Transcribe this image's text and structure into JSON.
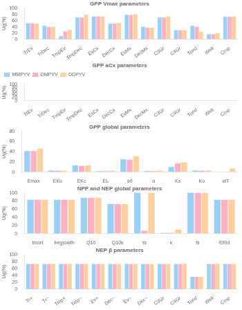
{
  "chart_data": [
    {
      "type": "bar",
      "title": "GPP Vmax parameters",
      "y_label": "Ug(%)",
      "categories": [
        "TrEv",
        "TrDec",
        "TmpEv",
        "TmpDec",
        "EvCx",
        "DecCx",
        "EvMx",
        "DecMx",
        "C3Gr",
        "C4Gr",
        "Tund",
        "Welt",
        "Crop"
      ],
      "series": [
        {
          "name": "MMPYV",
          "values": [
            51,
            43,
            10,
            70,
            73,
            50,
            78,
            40,
            70,
            29,
            43,
            16,
            72
          ]
        },
        {
          "name": "DMPYV",
          "values": [
            51,
            40,
            25,
            70,
            73,
            50,
            78,
            37,
            70,
            29,
            40,
            16,
            72
          ]
        },
        {
          "name": "DDPYV",
          "values": [
            50,
            40,
            30,
            78,
            73,
            52,
            79,
            37,
            73,
            29,
            24,
            20,
            73
          ]
        }
      ],
      "ylim": [
        0,
        100
      ],
      "yticks": [
        0,
        20,
        40,
        60,
        80,
        100
      ],
      "grid": false,
      "legend": false
    },
    {
      "type": "bar",
      "title": "GPP aCx parameters",
      "y_label": "Ug(%)",
      "categories": [
        "TrEv",
        "TrDec",
        "TmpEv",
        "TmpDec",
        "EvCx",
        "DecCx",
        "EvMx",
        "DecMx",
        "C3Gr",
        "C4Gr",
        "Tund",
        "Welt",
        "Crop"
      ],
      "series": [
        {
          "name": "MMPYV",
          "values": [
            0,
            0,
            0,
            0,
            0,
            0,
            0,
            0,
            0,
            0,
            0,
            0,
            0
          ]
        },
        {
          "name": "DMPYV",
          "values": [
            0,
            0,
            0,
            0,
            1,
            0,
            0,
            0,
            0,
            0,
            0,
            0,
            0
          ]
        },
        {
          "name": "DDPYV",
          "values": [
            0,
            0,
            0,
            0,
            0,
            0,
            0,
            0,
            0,
            0,
            0,
            0,
            0
          ]
        }
      ],
      "ylim": [
        0,
        100
      ],
      "yticks": [
        0,
        20,
        40,
        60,
        80,
        100
      ],
      "grid": false,
      "legend": "upper left"
    },
    {
      "type": "bar",
      "title": "GPP global parameters",
      "y_label": "Ug(%)",
      "categories": [
        "Emax",
        "EKo",
        "EKc",
        "EL",
        "α0",
        "α",
        "Ks",
        "Ko",
        "afT"
      ],
      "series": [
        {
          "name": "MMPYV",
          "values": [
            41,
            3,
            13,
            2,
            25,
            2,
            10,
            3,
            0
          ]
        },
        {
          "name": "DMPYV",
          "values": [
            41,
            3,
            12,
            2,
            24,
            2,
            17,
            3,
            0
          ]
        },
        {
          "name": "DDPYV",
          "values": [
            46,
            3,
            13,
            3,
            31,
            3,
            19,
            3,
            7
          ]
        }
      ],
      "ylim": [
        0,
        80
      ],
      "yticks": [
        0,
        20,
        40,
        60,
        80
      ],
      "grid": false,
      "legend": false
    },
    {
      "type": "bar",
      "title": "NPP and NEP global parameters",
      "y_label": "Ug(%)",
      "categories": [
        "tmort",
        "tregrowth",
        "Q10",
        "Q10s",
        "τs",
        "κ",
        "fs",
        "ERld"
      ],
      "series": [
        {
          "name": "MMPYV",
          "values": [
            83,
            83,
            88,
            72,
            100,
            2,
            100,
            83
          ]
        },
        {
          "name": "DMPYV",
          "values": [
            83,
            83,
            88,
            72,
            7,
            2,
            100,
            83
          ]
        },
        {
          "name": "DDPYV",
          "values": [
            83,
            83,
            88,
            72,
            100,
            10,
            100,
            83
          ]
        }
      ],
      "ylim": [
        0,
        100
      ],
      "yticks": [
        0,
        20,
        40,
        60,
        80,
        100
      ],
      "grid": false,
      "legend": false
    },
    {
      "type": "bar",
      "title": "NEP β parameters",
      "y_label": "Ug(%)",
      "categories": [
        "Tr+",
        "Tr−",
        "Tmp+",
        "Tmp−",
        "Ev+",
        "Dec−",
        "Ev−",
        "Dec−",
        "C3Gr",
        "C4Gr",
        "Tund",
        "Welt",
        "Crop"
      ],
      "series": [
        {
          "name": "MMPYV",
          "values": [
            72,
            72,
            72,
            72,
            72,
            72,
            72,
            72,
            72,
            72,
            35,
            72,
            72
          ]
        },
        {
          "name": "DMPYV",
          "values": [
            72,
            72,
            72,
            72,
            72,
            72,
            72,
            72,
            72,
            72,
            35,
            72,
            72
          ]
        },
        {
          "name": "DDPYV",
          "values": [
            72,
            72,
            72,
            72,
            72,
            72,
            72,
            72,
            72,
            72,
            35,
            72,
            72
          ]
        }
      ],
      "ylim": [
        0,
        100
      ],
      "yticks": [
        0,
        20,
        40,
        60,
        80,
        100
      ],
      "grid": false,
      "legend": false
    }
  ]
}
